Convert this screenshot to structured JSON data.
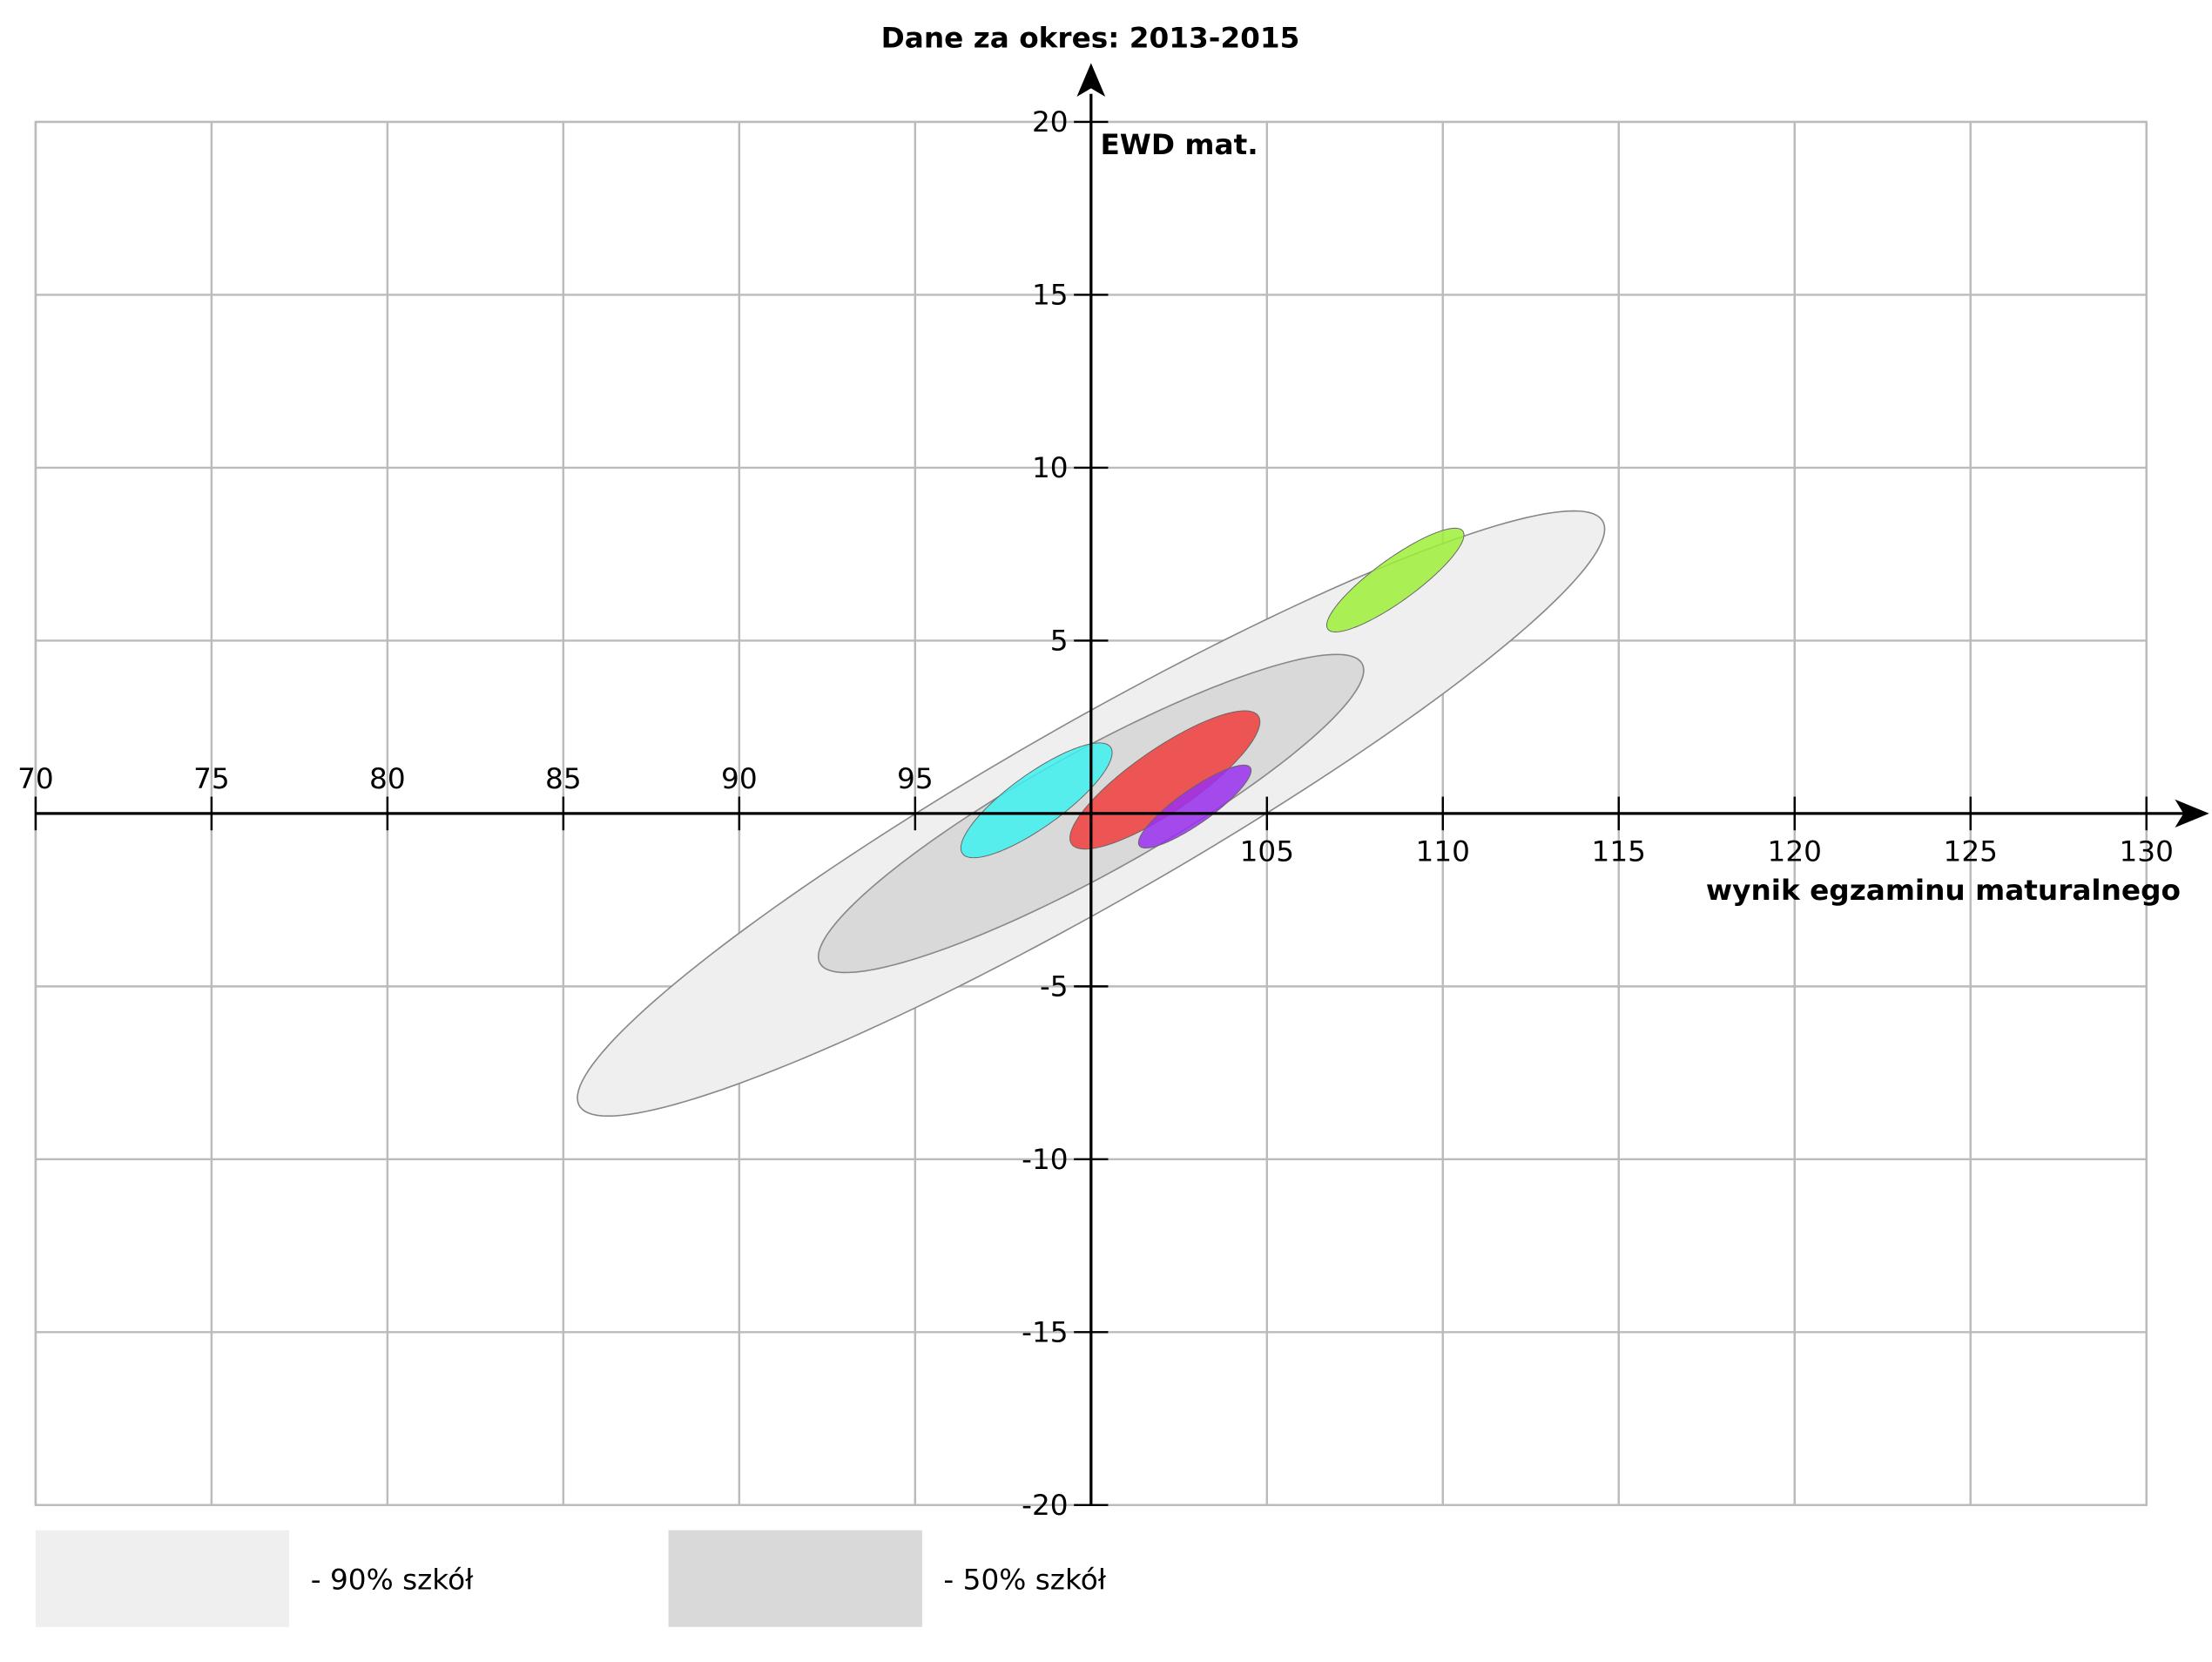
{
  "chart_data": {
    "type": "ellipse",
    "title": "Dane za okres: 2013-2015",
    "x_label": "wynik egzaminu maturalnego",
    "y_label": "EWD mat.",
    "xlim": [
      70,
      130
    ],
    "ylim": [
      -20,
      20
    ],
    "xticks": [
      70,
      75,
      80,
      85,
      90,
      95,
      105,
      110,
      115,
      120,
      125,
      130
    ],
    "yticks": [
      -20,
      -15,
      -10,
      -5,
      5,
      10,
      15,
      20
    ],
    "grid": true,
    "series": [
      {
        "name": "- 90% szkół",
        "color": "#efefef",
        "cx": 100,
        "cy": 0,
        "sx": 14.6,
        "sy": 8.75,
        "rho": 0.94
      },
      {
        "name": "- 50% szkół",
        "color": "#d9d9d9",
        "cx": 100,
        "cy": 0,
        "sx": 7.75,
        "sy": 4.6,
        "rho": 0.9
      },
      {
        "color": "#9ef03a",
        "cx": 108.65,
        "cy": 6.75,
        "sx": 1.95,
        "sy": 1.5,
        "rho": 0.87
      },
      {
        "color": "#3ef0f0",
        "cx": 98.45,
        "cy": 0.38,
        "sx": 2.15,
        "sy": 1.66,
        "rho": 0.83
      },
      {
        "color": "#f03c3c",
        "cx": 102.1,
        "cy": 0.97,
        "sx": 2.7,
        "sy": 2.0,
        "rho": 0.84
      },
      {
        "color": "#9a30f0",
        "cx": 102.95,
        "cy": 0.2,
        "sx": 1.6,
        "sy": 1.2,
        "rho": 0.87
      }
    ]
  }
}
